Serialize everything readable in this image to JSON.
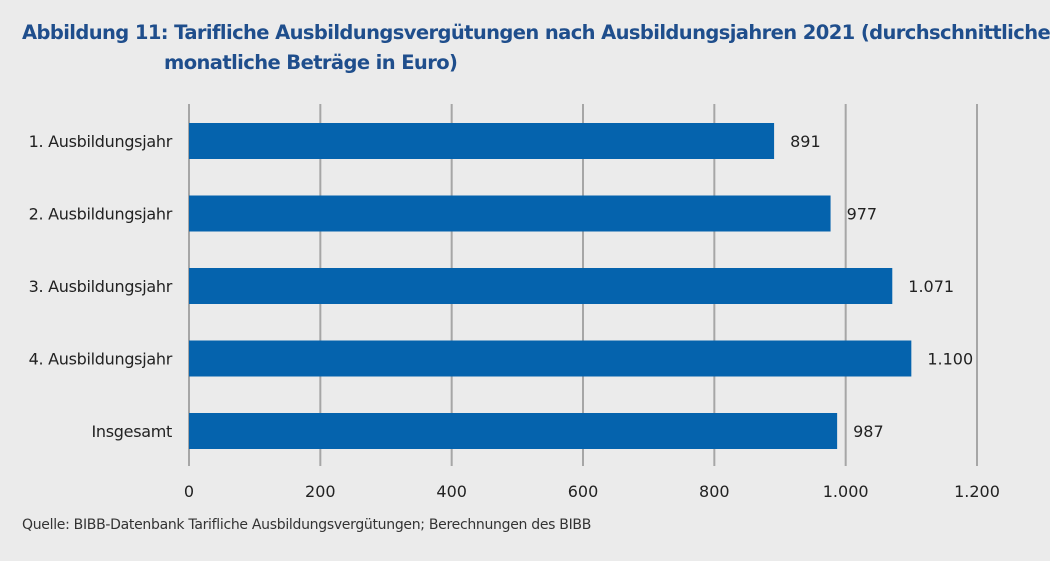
{
  "title_line1": "Abbildung 11: Tarifliche Ausbildungsvergütungen nach Ausbildungsjahren 2021 (durchschnittliche",
  "title_line2": "monatliche Beträge in Euro)",
  "source": "Quelle: BIBB-Datenbank Tarifliche Ausbildungsvergütungen; Berechnungen des BIBB",
  "chart_data": {
    "type": "bar",
    "orientation": "horizontal",
    "title": "Abbildung 11: Tarifliche Ausbildungsvergütungen nach Ausbildungsjahren 2021 (durchschnittliche monatliche Beträge in Euro)",
    "categories": [
      "1. Ausbildungsjahr",
      "2. Ausbildungsjahr",
      "3. Ausbildungsjahr",
      "4. Ausbildungsjahr",
      "Insgesamt"
    ],
    "values": [
      891,
      977,
      1071,
      1100,
      987
    ],
    "value_labels": [
      "891",
      "977",
      "1.071",
      "1.100",
      "987"
    ],
    "xlim": [
      0,
      1200
    ],
    "xticks": [
      0,
      200,
      400,
      600,
      800,
      1000,
      1200
    ],
    "xtick_labels": [
      "0",
      "200",
      "400",
      "600",
      "800",
      "1.000",
      "1.200"
    ],
    "xlabel": "",
    "ylabel": "",
    "grid": true,
    "bar_color": "#0563ad",
    "grid_color": "#a6a6a6"
  }
}
